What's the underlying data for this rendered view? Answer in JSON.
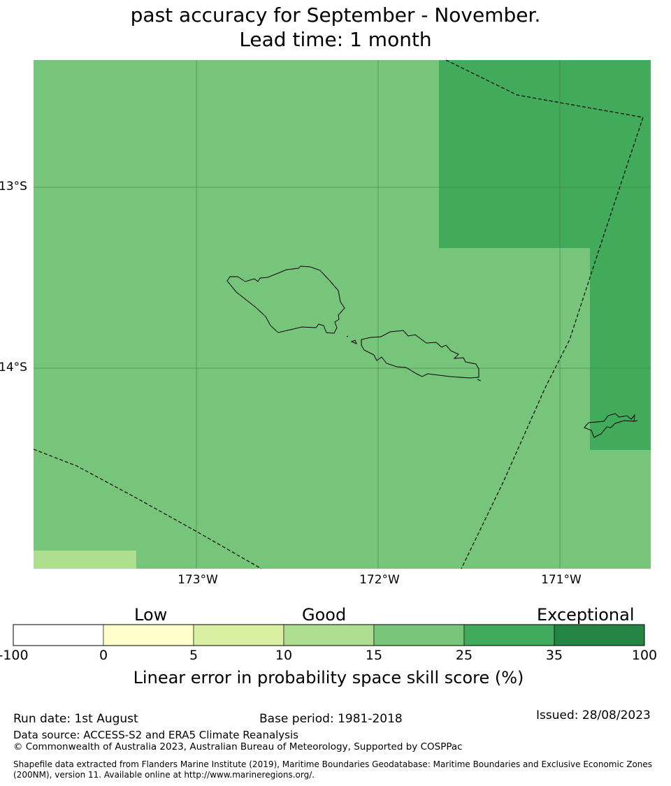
{
  "title": {
    "line1": "past accuracy for September - November.",
    "line2": "Lead time: 1 month"
  },
  "map": {
    "lat_labels": [
      "13°S",
      "14°S"
    ],
    "lon_labels": [
      "173°W",
      "172°W",
      "171°W"
    ],
    "colors": {
      "category_25_35": "#77c57a",
      "category_35_100": "#42aa5b",
      "category_15_25": "#addd8f",
      "gridline": "#3d7a44",
      "coastline": "#000000",
      "boundary": "#000000"
    }
  },
  "colorbar": {
    "categories": [
      "Low",
      "Good",
      "Exceptional"
    ],
    "ticks": [
      "-100",
      "0",
      "5",
      "10",
      "15",
      "25",
      "35",
      "100"
    ],
    "colors": [
      "#ffffff",
      "#ffffcc",
      "#d9f0a3",
      "#addd8e",
      "#78c679",
      "#41ab5d",
      "#238443"
    ],
    "label": "Linear error in probability space skill score (%)"
  },
  "footer": {
    "run_date": "Run date: 1st August",
    "base_period": "Base period: 1981-2018",
    "issued": "Issued: 28/08/2023",
    "data_source": "Data source: ACCESS-S2 and ERA5 Climate Reanalysis",
    "copyright": "© Commonwealth of Australia 2023, Australian Bureau of Meteorology, Supported by COSPPac",
    "shapefile": "Shapefile data extracted from Flanders Marine Institute (2019), Maritime Boundaries Geodatabase: Maritime Boundaries and Exclusive Economic Zones (200NM), version 11. Available online at http://www.marineregions.org/."
  }
}
